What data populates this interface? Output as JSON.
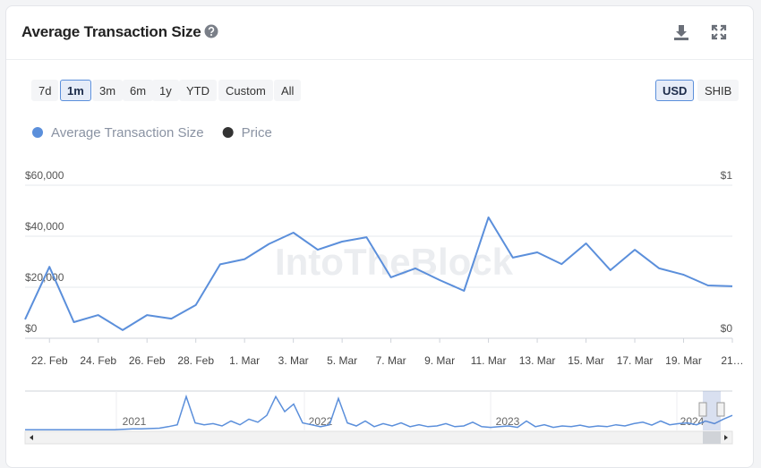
{
  "header": {
    "title": "Average Transaction Size"
  },
  "range_buttons": {
    "options": [
      "7d",
      "1m",
      "3m",
      "6m",
      "1y",
      "YTD",
      "Custom",
      "All"
    ],
    "active": "1m"
  },
  "currency_buttons": {
    "options": [
      "USD",
      "SHIB"
    ],
    "active": "USD"
  },
  "chart_data": {
    "type": "line",
    "watermark": "IntoTheBlock",
    "categories": [
      null,
      "22. Feb",
      null,
      "24. Feb",
      null,
      "26. Feb",
      null,
      "28. Feb",
      null,
      "1. Mar",
      null,
      "3. Mar",
      null,
      "5. Mar",
      null,
      "7. Mar",
      null,
      "9. Mar",
      null,
      "11. Mar",
      null,
      "13. Mar",
      null,
      "15. Mar",
      null,
      "17. Mar",
      null,
      "19. Mar",
      null,
      "21…"
    ],
    "series": [
      {
        "name": "Average Transaction Size",
        "color": "#5b8fdb",
        "values": [
          7400,
          28000,
          6300,
          9100,
          3200,
          9100,
          7700,
          13000,
          29000,
          31000,
          37000,
          41400,
          34700,
          37900,
          39600,
          23900,
          27400,
          22800,
          18600,
          47400,
          31600,
          33700,
          29100,
          37200,
          26700,
          34700,
          27400,
          24900,
          20700,
          20400
        ]
      },
      {
        "name": "Price",
        "color": "#333333",
        "axis": "y2",
        "values": [
          null,
          null,
          null,
          null,
          null,
          null,
          null,
          null,
          null,
          null,
          null,
          null,
          null,
          null,
          null,
          null,
          null,
          null,
          null,
          null,
          null,
          null,
          null,
          null,
          null,
          null,
          null,
          null,
          null,
          null
        ]
      }
    ],
    "ylim": [
      0,
      60000
    ],
    "yticks": [
      {
        "value": 0,
        "label": "$0"
      },
      {
        "value": 20000,
        "label": "$20,000"
      },
      {
        "value": 40000,
        "label": "$40,000"
      },
      {
        "value": 60000,
        "label": "$60,000"
      }
    ],
    "y2lim": [
      0,
      1
    ],
    "y2ticks": [
      {
        "value": 0,
        "label": "$0"
      },
      {
        "value": 1,
        "label": "$1"
      }
    ],
    "grid": true
  },
  "navigator": {
    "color": "#5b8fdb",
    "ylim": [
      0,
      100
    ],
    "year_labels": [
      "2021",
      "2022",
      "2023",
      "2024"
    ],
    "values": [
      2,
      2,
      2,
      2,
      2,
      2,
      2,
      2,
      2,
      2,
      2,
      3,
      4,
      4,
      5,
      6,
      10,
      15,
      90,
      20,
      15,
      18,
      12,
      25,
      15,
      30,
      22,
      40,
      90,
      50,
      70,
      20,
      15,
      10,
      15,
      85,
      20,
      12,
      25,
      10,
      18,
      12,
      20,
      10,
      15,
      10,
      12,
      18,
      10,
      12,
      22,
      10,
      8,
      10,
      12,
      8,
      25,
      10,
      15,
      8,
      12,
      10,
      14,
      9,
      12,
      10,
      15,
      12,
      18,
      22,
      14,
      25,
      15,
      18,
      20,
      15,
      25,
      18,
      30,
      40
    ]
  }
}
